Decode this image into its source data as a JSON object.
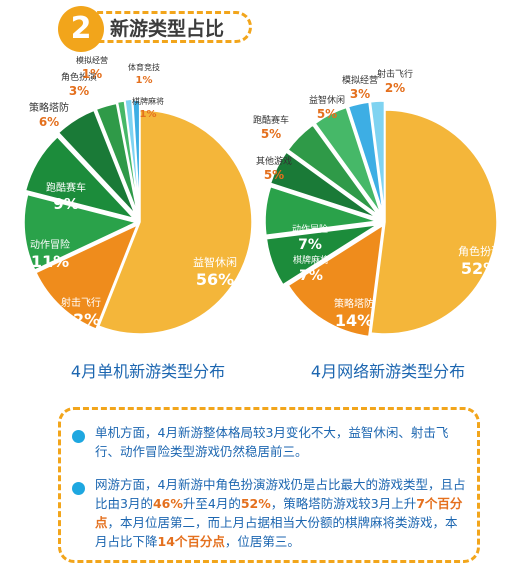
{
  "header": {
    "number": "2",
    "title": "新游类型占比"
  },
  "chart_data": [
    {
      "type": "pie",
      "title": "4月单机新游类型分布",
      "slices": [
        {
          "label": "益智休闲",
          "value": 56,
          "display": "56%",
          "color": "#f4b63a"
        },
        {
          "label": "射击飞行",
          "value": 12,
          "display": "12%",
          "color": "#ef8c1c"
        },
        {
          "label": "动作冒险",
          "value": 11,
          "display": "11%",
          "color": "#2aa24a"
        },
        {
          "label": "跑酷赛车",
          "value": 9,
          "display": "9%",
          "color": "#1c8c3b"
        },
        {
          "label": "策略塔防",
          "value": 6,
          "display": "6%",
          "color": "#1a7a37"
        },
        {
          "label": "角色扮演",
          "value": 3,
          "display": "3%",
          "color": "#2f9a48"
        },
        {
          "label": "模拟经营",
          "value": 1,
          "display": "1%",
          "color": "#46b868"
        },
        {
          "label": "体育竞技",
          "value": 1,
          "display": "1%",
          "color": "#7fd3f1"
        },
        {
          "label": "棋牌麻将",
          "value": 1,
          "display": "1%",
          "color": "#3daee4"
        }
      ]
    },
    {
      "type": "pie",
      "title": "4月网络新游类型分布",
      "slices": [
        {
          "label": "角色扮演",
          "value": 52,
          "display": "52%",
          "color": "#f4b63a"
        },
        {
          "label": "策略塔防",
          "value": 14,
          "display": "14%",
          "color": "#ef8c1c"
        },
        {
          "label": "棋牌麻将",
          "value": 7,
          "display": "7%",
          "color": "#1c8c3b"
        },
        {
          "label": "动作冒险",
          "value": 7,
          "display": "7%",
          "color": "#2aa24a"
        },
        {
          "label": "其他游戏",
          "value": 5,
          "display": "5%",
          "color": "#1a7a37"
        },
        {
          "label": "跑酷赛车",
          "value": 5,
          "display": "5%",
          "color": "#2f9a48"
        },
        {
          "label": "益智休闲",
          "value": 5,
          "display": "5%",
          "color": "#46b868"
        },
        {
          "label": "模拟经营",
          "value": 3,
          "display": "3%",
          "color": "#3daee4"
        },
        {
          "label": "射击飞行",
          "value": 2,
          "display": "2%",
          "color": "#7fd3f1"
        }
      ]
    }
  ],
  "notes": [
    {
      "segments": [
        {
          "text": "单机方面，4月新游整体格局较3月变化不大，益智休闲、射击飞行、动作冒险类型游戏仍然稳居前三。",
          "hl": false
        }
      ]
    },
    {
      "segments": [
        {
          "text": "网游方面，4月新游中角色扮演游戏仍是占比最大的游戏类型，且占比由3月的",
          "hl": false
        },
        {
          "text": "46%",
          "hl": true
        },
        {
          "text": "升至4月的",
          "hl": false
        },
        {
          "text": "52%",
          "hl": true
        },
        {
          "text": "，策略塔防游戏较3月上升",
          "hl": false
        },
        {
          "text": "7个百分点",
          "hl": true
        },
        {
          "text": "，本月位居第二，而上月占据相当大份额的棋牌麻将类游戏，本月占比下降",
          "hl": false
        },
        {
          "text": "14个百分点",
          "hl": true
        },
        {
          "text": "，位居第三。",
          "hl": false
        }
      ]
    }
  ]
}
